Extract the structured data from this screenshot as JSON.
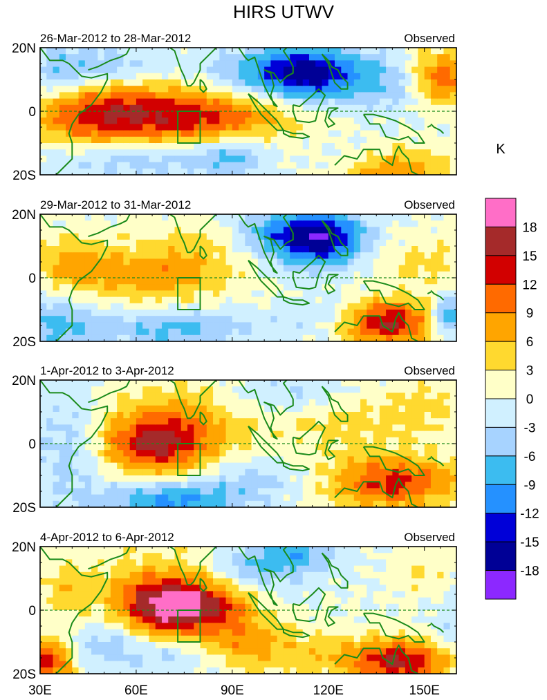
{
  "title": "HIRS UTWV",
  "colorbar": {
    "unit_label": "K",
    "levels": [
      18,
      15,
      12,
      9,
      6,
      3,
      0,
      -3,
      -6,
      -9,
      -12,
      -15,
      -18
    ],
    "colors": [
      "#ff6ec7",
      "#a52a2a",
      "#d20000",
      "#ff6a00",
      "#ffa500",
      "#ffd92f",
      "#ffffc8",
      "#d0f0ff",
      "#a7d3ff",
      "#3cbcf0",
      "#2591ff",
      "#0000d8",
      "#000096",
      "#8c28ff"
    ]
  },
  "chart_data": [
    {
      "type": "heatmap",
      "title": "26-Mar-2012 to 28-Mar-2012",
      "label_right": "Observed",
      "x_ticks": [
        "30E",
        "60E",
        "90E",
        "120E",
        "150E"
      ],
      "y_ticks": [
        "20N",
        "0",
        "20S"
      ],
      "xlim": [
        30,
        160
      ],
      "ylim": [
        -20,
        20
      ],
      "features": [
        {
          "lon": 71,
          "lat": -3,
          "sx": 22,
          "sy": 7,
          "amp": 11
        },
        {
          "lon": 45,
          "lat": -3,
          "sx": 14,
          "sy": 8,
          "amp": 6
        },
        {
          "lon": 58,
          "lat": 2,
          "sx": 20,
          "sy": 6,
          "amp": 4
        },
        {
          "lon": 155,
          "lat": 10,
          "sx": 8,
          "sy": 6,
          "amp": 13
        },
        {
          "lon": 140,
          "lat": -18,
          "sx": 12,
          "sy": 5,
          "amp": 9
        },
        {
          "lon": 95,
          "lat": -2,
          "sx": 12,
          "sy": 5,
          "amp": 3
        },
        {
          "lon": 115,
          "lat": 12,
          "sx": 12,
          "sy": 6,
          "amp": -14
        },
        {
          "lon": 100,
          "lat": 12,
          "sx": 14,
          "sy": 5,
          "amp": -6
        },
        {
          "lon": 143,
          "lat": 8,
          "sx": 10,
          "sy": 6,
          "amp": -6
        },
        {
          "lon": 60,
          "lat": -14,
          "sx": 20,
          "sy": 5,
          "amp": -7
        },
        {
          "lon": 90,
          "lat": -14,
          "sx": 8,
          "sy": 5,
          "amp": -6
        },
        {
          "lon": 50,
          "lat": 14,
          "sx": 14,
          "sy": 5,
          "amp": -5
        },
        {
          "lon": 36,
          "lat": 12,
          "sx": 6,
          "sy": 6,
          "amp": -4
        },
        {
          "lon": 130,
          "lat": -14,
          "sx": 10,
          "sy": 4,
          "amp": -3
        }
      ]
    },
    {
      "type": "heatmap",
      "title": "29-Mar-2012 to 31-Mar-2012",
      "label_right": "Observed",
      "x_ticks": [
        "30E",
        "60E",
        "90E",
        "120E",
        "150E"
      ],
      "y_ticks": [
        "20N",
        "0",
        "20S"
      ],
      "xlim": [
        30,
        160
      ],
      "ylim": [
        -20,
        20
      ],
      "features": [
        {
          "lon": 68,
          "lat": 1,
          "sx": 16,
          "sy": 6,
          "amp": 8
        },
        {
          "lon": 40,
          "lat": 4,
          "sx": 10,
          "sy": 7,
          "amp": 6
        },
        {
          "lon": 138,
          "lat": -14,
          "sx": 10,
          "sy": 5,
          "amp": 16
        },
        {
          "lon": 150,
          "lat": 5,
          "sx": 12,
          "sy": 6,
          "amp": 4
        },
        {
          "lon": 80,
          "lat": 12,
          "sx": 12,
          "sy": 5,
          "amp": 3
        },
        {
          "lon": 118,
          "lat": 12,
          "sx": 10,
          "sy": 6,
          "amp": -15
        },
        {
          "lon": 105,
          "lat": 14,
          "sx": 12,
          "sy": 5,
          "amp": -7
        },
        {
          "lon": 35,
          "lat": -14,
          "sx": 8,
          "sy": 6,
          "amp": -7
        },
        {
          "lon": 72,
          "lat": -16,
          "sx": 18,
          "sy": 4,
          "amp": -7
        },
        {
          "lon": 158,
          "lat": -12,
          "sx": 4,
          "sy": 4,
          "amp": -10
        },
        {
          "lon": 120,
          "lat": -12,
          "sx": 10,
          "sy": 4,
          "amp": -3
        }
      ]
    },
    {
      "type": "heatmap",
      "title": "1-Apr-2012 to 3-Apr-2012",
      "label_right": "Observed",
      "x_ticks": [
        "30E",
        "60E",
        "90E",
        "120E",
        "150E"
      ],
      "y_ticks": [
        "20N",
        "0",
        "20S"
      ],
      "xlim": [
        30,
        160
      ],
      "ylim": [
        -20,
        20
      ],
      "features": [
        {
          "lon": 66,
          "lat": -1,
          "sx": 12,
          "sy": 6,
          "amp": 13
        },
        {
          "lon": 74,
          "lat": 8,
          "sx": 18,
          "sy": 8,
          "amp": 7
        },
        {
          "lon": 140,
          "lat": -12,
          "sx": 14,
          "sy": 6,
          "amp": 13
        },
        {
          "lon": 125,
          "lat": 6,
          "sx": 14,
          "sy": 6,
          "amp": 4
        },
        {
          "lon": 150,
          "lat": 12,
          "sx": 8,
          "sy": 6,
          "amp": 4
        },
        {
          "lon": 40,
          "lat": 0,
          "sx": 8,
          "sy": 14,
          "amp": -5
        },
        {
          "lon": 70,
          "lat": -18,
          "sx": 14,
          "sy": 4,
          "amp": -10
        },
        {
          "lon": 95,
          "lat": -12,
          "sx": 12,
          "sy": 5,
          "amp": -4
        },
        {
          "lon": 95,
          "lat": 14,
          "sx": 10,
          "sy": 5,
          "amp": -3
        },
        {
          "lon": 112,
          "lat": 16,
          "sx": 8,
          "sy": 4,
          "amp": -3
        }
      ]
    },
    {
      "type": "heatmap",
      "title": "4-Apr-2012 to 6-Apr-2012",
      "label_right": "Observed",
      "x_ticks": [
        "30E",
        "60E",
        "90E",
        "120E",
        "150E"
      ],
      "y_ticks": [
        "20N",
        "0",
        "20S"
      ],
      "xlim": [
        30,
        160
      ],
      "ylim": [
        -20,
        20
      ],
      "features": [
        {
          "lon": 70,
          "lat": 1,
          "sx": 10,
          "sy": 6,
          "amp": 16
        },
        {
          "lon": 68,
          "lat": 6,
          "sx": 16,
          "sy": 10,
          "amp": 6
        },
        {
          "lon": 142,
          "lat": -16,
          "sx": 12,
          "sy": 5,
          "amp": 15
        },
        {
          "lon": 32,
          "lat": -16,
          "sx": 6,
          "sy": 5,
          "amp": 14
        },
        {
          "lon": 92,
          "lat": -8,
          "sx": 10,
          "sy": 6,
          "amp": 7
        },
        {
          "lon": 85,
          "lat": 2,
          "sx": 8,
          "sy": 4,
          "amp": 6
        },
        {
          "lon": 110,
          "lat": -14,
          "sx": 14,
          "sy": 5,
          "amp": 4
        },
        {
          "lon": 38,
          "lat": 6,
          "sx": 6,
          "sy": 8,
          "amp": 4
        },
        {
          "lon": 150,
          "lat": 12,
          "sx": 6,
          "sy": 6,
          "amp": 3
        },
        {
          "lon": 100,
          "lat": 14,
          "sx": 12,
          "sy": 5,
          "amp": -7
        },
        {
          "lon": 112,
          "lat": 18,
          "sx": 8,
          "sy": 3,
          "amp": -5
        },
        {
          "lon": 50,
          "lat": -10,
          "sx": 10,
          "sy": 6,
          "amp": -5
        },
        {
          "lon": 72,
          "lat": -14,
          "sx": 10,
          "sy": 4,
          "amp": -4
        },
        {
          "lon": 160,
          "lat": -8,
          "sx": 6,
          "sy": 6,
          "amp": -4
        }
      ]
    }
  ]
}
